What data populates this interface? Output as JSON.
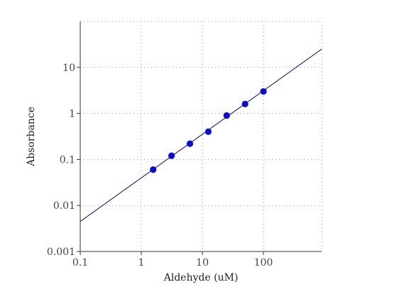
{
  "chart_data": {
    "type": "scatter",
    "xlabel": "Aldehyde (uM)",
    "ylabel": "Absorbance",
    "xscale": "log",
    "yscale": "log",
    "xlim": [
      0.1,
      900
    ],
    "ylim": [
      0.001,
      100
    ],
    "x_ticks": [
      {
        "value": 0.1,
        "label": "0.1"
      },
      {
        "value": 1,
        "label": "1"
      },
      {
        "value": 10,
        "label": "10"
      },
      {
        "value": 100,
        "label": "100"
      }
    ],
    "y_ticks": [
      {
        "value": 0.001,
        "label": "0.001"
      },
      {
        "value": 0.01,
        "label": "0.01"
      },
      {
        "value": 0.1,
        "label": "0.1"
      },
      {
        "value": 1,
        "label": "1"
      },
      {
        "value": 10,
        "label": "10"
      }
    ],
    "grid": true,
    "series": [
      {
        "kind": "points",
        "x": [
          1.5625,
          3.125,
          6.25,
          12.5,
          25,
          50,
          100
        ],
        "y": [
          0.06,
          0.12,
          0.22,
          0.4,
          0.9,
          1.6,
          3.0
        ]
      },
      {
        "kind": "fit-line",
        "x": [
          0.1,
          900
        ],
        "y": [
          0.0045,
          25
        ]
      }
    ],
    "colors": {
      "points": "#0b0bd8",
      "line": "#1a1aaa",
      "axis": "#333333",
      "grid": "#9a9a9a"
    }
  }
}
